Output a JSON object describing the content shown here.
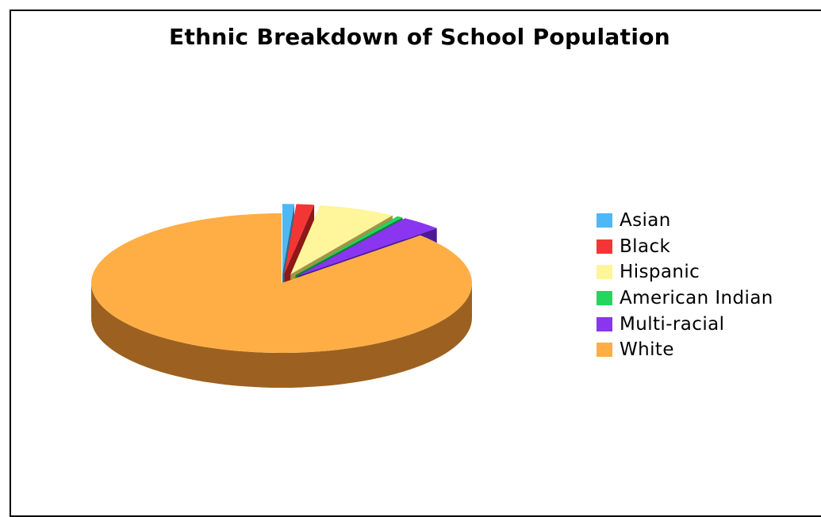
{
  "chart_data": {
    "type": "pie",
    "title": "Ethnic Breakdown of School Population",
    "exploded": true,
    "three_d": true,
    "legend_position": "right",
    "slices": [
      {
        "label": "Asian",
        "value": 1.0,
        "color": "#4DB8F5",
        "side_color": "#2A6E94"
      },
      {
        "label": "Black",
        "value": 1.5,
        "color": "#F53535",
        "side_color": "#8E1717"
      },
      {
        "label": "Hispanic",
        "value": 6.5,
        "color": "#FFF59A",
        "side_color": "#A39448"
      },
      {
        "label": "American Indian",
        "value": 0.5,
        "color": "#22D65E",
        "side_color": "#137E34"
      },
      {
        "label": "Multi-racial",
        "value": 3.5,
        "color": "#8A35F0",
        "side_color": "#4A1A99"
      },
      {
        "label": "White",
        "value": 87.0,
        "color": "#FEAE45",
        "side_color": "#9C6120"
      }
    ]
  }
}
